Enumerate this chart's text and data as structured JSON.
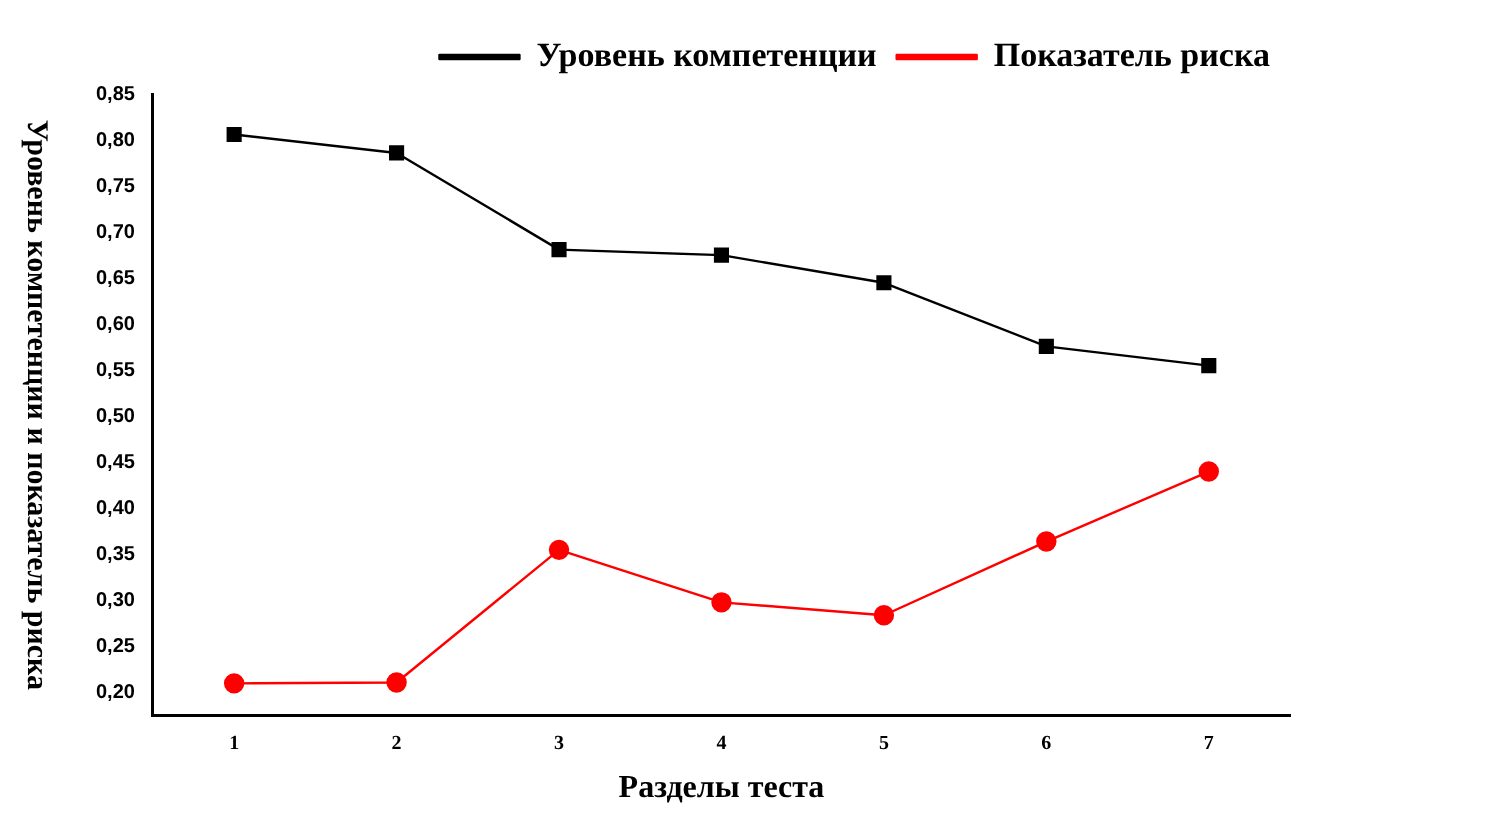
{
  "chart_data": {
    "type": "line",
    "xlabel": "Разделы теста",
    "ylabel": "Уровень компетенции и показатель риска",
    "x": [
      1,
      2,
      3,
      4,
      5,
      6,
      7
    ],
    "series": [
      {
        "name": "Уровень компетенции",
        "color": "#000000",
        "marker": "square",
        "values": [
          0.806,
          0.786,
          0.681,
          0.675,
          0.645,
          0.576,
          0.555
        ]
      },
      {
        "name": "Показатель риска",
        "color": "#ff0000",
        "marker": "circle",
        "values": [
          0.21,
          0.211,
          0.355,
          0.298,
          0.284,
          0.364,
          0.44
        ]
      }
    ],
    "xlim": [
      0.5,
      7.5
    ],
    "xticks": [
      1,
      2,
      3,
      4,
      5,
      6,
      7
    ],
    "ylim": [
      0.175,
      0.85
    ],
    "yticks": [
      {
        "value": 0.2,
        "label": "0,20"
      },
      {
        "value": 0.25,
        "label": "0,25"
      },
      {
        "value": 0.3,
        "label": "0,30"
      },
      {
        "value": 0.35,
        "label": "0,35"
      },
      {
        "value": 0.4,
        "label": "0,40"
      },
      {
        "value": 0.45,
        "label": "0,45"
      },
      {
        "value": 0.5,
        "label": "0,50"
      },
      {
        "value": 0.55,
        "label": "0,55"
      },
      {
        "value": 0.6,
        "label": "0,60"
      },
      {
        "value": 0.65,
        "label": "0,65"
      },
      {
        "value": 0.7,
        "label": "0,70"
      },
      {
        "value": 0.75,
        "label": "0,75"
      },
      {
        "value": 0.8,
        "label": "0,80"
      },
      {
        "value": 0.85,
        "label": "0,85"
      }
    ],
    "grid": false,
    "legend": "top right",
    "line_style": "solid"
  }
}
